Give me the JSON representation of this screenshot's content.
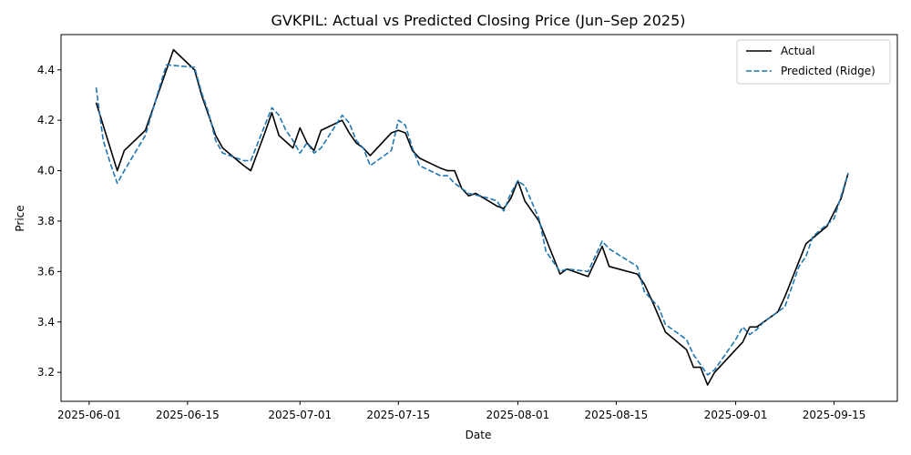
{
  "chart_data": {
    "type": "line",
    "title": "GVKPIL: Actual vs Predicted Closing Price (Jun–Sep 2025)",
    "xlabel": "Date",
    "ylabel": "Price",
    "xlim": [
      "2025-05-28",
      "2025-09-24"
    ],
    "ylim": [
      3.085,
      4.54
    ],
    "x_ticks": [
      "2025-06-01",
      "2025-06-15",
      "2025-07-01",
      "2025-07-15",
      "2025-08-01",
      "2025-08-15",
      "2025-09-01",
      "2025-09-15"
    ],
    "y_ticks": [
      3.2,
      3.4,
      3.6,
      3.8,
      4.0,
      4.2,
      4.4
    ],
    "y_tick_labels": [
      "3.2",
      "3.4",
      "3.6",
      "3.8",
      "4.0",
      "4.2",
      "4.4"
    ],
    "grid": false,
    "legend_position": "top-right",
    "series": [
      {
        "name": "Actual",
        "color": "#000000",
        "style": "solid",
        "points": [
          [
            "2025-06-02",
            4.27
          ],
          [
            "2025-06-05",
            4.0
          ],
          [
            "2025-06-06",
            4.08
          ],
          [
            "2025-06-09",
            4.16
          ],
          [
            "2025-06-13",
            4.48
          ],
          [
            "2025-06-16",
            4.4
          ],
          [
            "2025-06-17",
            4.3
          ],
          [
            "2025-06-19",
            4.14
          ],
          [
            "2025-06-20",
            4.09
          ],
          [
            "2025-06-23",
            4.02
          ],
          [
            "2025-06-24",
            4.0
          ],
          [
            "2025-06-26",
            4.15
          ],
          [
            "2025-06-27",
            4.23
          ],
          [
            "2025-06-28",
            4.14
          ],
          [
            "2025-06-30",
            4.09
          ],
          [
            "2025-07-01",
            4.17
          ],
          [
            "2025-07-02",
            4.11
          ],
          [
            "2025-07-03",
            4.08
          ],
          [
            "2025-07-04",
            4.16
          ],
          [
            "2025-07-07",
            4.2
          ],
          [
            "2025-07-08",
            4.15
          ],
          [
            "2025-07-09",
            4.11
          ],
          [
            "2025-07-10",
            4.09
          ],
          [
            "2025-07-11",
            4.06
          ],
          [
            "2025-07-14",
            4.15
          ],
          [
            "2025-07-15",
            4.16
          ],
          [
            "2025-07-16",
            4.15
          ],
          [
            "2025-07-17",
            4.08
          ],
          [
            "2025-07-18",
            4.05
          ],
          [
            "2025-07-21",
            4.01
          ],
          [
            "2025-07-22",
            4.0
          ],
          [
            "2025-07-23",
            4.0
          ],
          [
            "2025-07-24",
            3.93
          ],
          [
            "2025-07-25",
            3.9
          ],
          [
            "2025-07-26",
            3.91
          ],
          [
            "2025-07-29",
            3.86
          ],
          [
            "2025-07-30",
            3.85
          ],
          [
            "2025-07-31",
            3.89
          ],
          [
            "2025-08-01",
            3.96
          ],
          [
            "2025-08-02",
            3.88
          ],
          [
            "2025-08-04",
            3.8
          ],
          [
            "2025-08-07",
            3.59
          ],
          [
            "2025-08-08",
            3.61
          ],
          [
            "2025-08-11",
            3.58
          ],
          [
            "2025-08-13",
            3.7
          ],
          [
            "2025-08-14",
            3.62
          ],
          [
            "2025-08-18",
            3.59
          ],
          [
            "2025-08-19",
            3.55
          ],
          [
            "2025-08-20",
            3.49
          ],
          [
            "2025-08-22",
            3.36
          ],
          [
            "2025-08-25",
            3.29
          ],
          [
            "2025-08-26",
            3.22
          ],
          [
            "2025-08-27",
            3.22
          ],
          [
            "2025-08-28",
            3.15
          ],
          [
            "2025-08-29",
            3.2
          ],
          [
            "2025-09-01",
            3.29
          ],
          [
            "2025-09-02",
            3.32
          ],
          [
            "2025-09-03",
            3.38
          ],
          [
            "2025-09-04",
            3.38
          ],
          [
            "2025-09-07",
            3.44
          ],
          [
            "2025-09-08",
            3.5
          ],
          [
            "2025-09-11",
            3.71
          ],
          [
            "2025-09-14",
            3.78
          ],
          [
            "2025-09-16",
            3.89
          ],
          [
            "2025-09-17",
            3.99
          ]
        ]
      },
      {
        "name": "Predicted (Ridge)",
        "color": "#1f77b4",
        "style": "dashed",
        "points": [
          [
            "2025-06-02",
            4.33
          ],
          [
            "2025-06-03",
            4.12
          ],
          [
            "2025-06-04",
            4.03
          ],
          [
            "2025-06-05",
            3.95
          ],
          [
            "2025-06-06",
            4.0
          ],
          [
            "2025-06-09",
            4.14
          ],
          [
            "2025-06-11",
            4.33
          ],
          [
            "2025-06-12",
            4.42
          ],
          [
            "2025-06-16",
            4.41
          ],
          [
            "2025-06-17",
            4.31
          ],
          [
            "2025-06-18",
            4.23
          ],
          [
            "2025-06-19",
            4.12
          ],
          [
            "2025-06-20",
            4.07
          ],
          [
            "2025-06-23",
            4.04
          ],
          [
            "2025-06-24",
            4.04
          ],
          [
            "2025-06-25",
            4.11
          ],
          [
            "2025-06-26",
            4.18
          ],
          [
            "2025-06-27",
            4.25
          ],
          [
            "2025-06-28",
            4.22
          ],
          [
            "2025-06-29",
            4.16
          ],
          [
            "2025-06-30",
            4.12
          ],
          [
            "2025-07-01",
            4.07
          ],
          [
            "2025-07-02",
            4.11
          ],
          [
            "2025-07-03",
            4.07
          ],
          [
            "2025-07-04",
            4.09
          ],
          [
            "2025-07-07",
            4.22
          ],
          [
            "2025-07-08",
            4.19
          ],
          [
            "2025-07-09",
            4.12
          ],
          [
            "2025-07-10",
            4.09
          ],
          [
            "2025-07-11",
            4.02
          ],
          [
            "2025-07-14",
            4.08
          ],
          [
            "2025-07-15",
            4.2
          ],
          [
            "2025-07-16",
            4.18
          ],
          [
            "2025-07-17",
            4.09
          ],
          [
            "2025-07-18",
            4.02
          ],
          [
            "2025-07-21",
            3.98
          ],
          [
            "2025-07-22",
            3.98
          ],
          [
            "2025-07-23",
            3.95
          ],
          [
            "2025-07-25",
            3.91
          ],
          [
            "2025-07-28",
            3.89
          ],
          [
            "2025-07-29",
            3.88
          ],
          [
            "2025-07-30",
            3.84
          ],
          [
            "2025-07-31",
            3.91
          ],
          [
            "2025-08-01",
            3.96
          ],
          [
            "2025-08-02",
            3.94
          ],
          [
            "2025-08-04",
            3.81
          ],
          [
            "2025-08-05",
            3.68
          ],
          [
            "2025-08-07",
            3.6
          ],
          [
            "2025-08-08",
            3.61
          ],
          [
            "2025-08-11",
            3.6
          ],
          [
            "2025-08-13",
            3.72
          ],
          [
            "2025-08-14",
            3.69
          ],
          [
            "2025-08-18",
            3.62
          ],
          [
            "2025-08-19",
            3.52
          ],
          [
            "2025-08-21",
            3.46
          ],
          [
            "2025-08-22",
            3.39
          ],
          [
            "2025-08-25",
            3.33
          ],
          [
            "2025-08-26",
            3.27
          ],
          [
            "2025-08-27",
            3.23
          ],
          [
            "2025-08-28",
            3.19
          ],
          [
            "2025-08-29",
            3.21
          ],
          [
            "2025-08-31",
            3.29
          ],
          [
            "2025-09-01",
            3.33
          ],
          [
            "2025-09-02",
            3.38
          ],
          [
            "2025-09-03",
            3.35
          ],
          [
            "2025-09-04",
            3.37
          ],
          [
            "2025-09-05",
            3.4
          ],
          [
            "2025-09-07",
            3.44
          ],
          [
            "2025-09-08",
            3.46
          ],
          [
            "2025-09-09",
            3.54
          ],
          [
            "2025-09-10",
            3.62
          ],
          [
            "2025-09-11",
            3.66
          ],
          [
            "2025-09-12",
            3.74
          ],
          [
            "2025-09-15",
            3.81
          ],
          [
            "2025-09-17",
            3.99
          ]
        ]
      }
    ]
  }
}
